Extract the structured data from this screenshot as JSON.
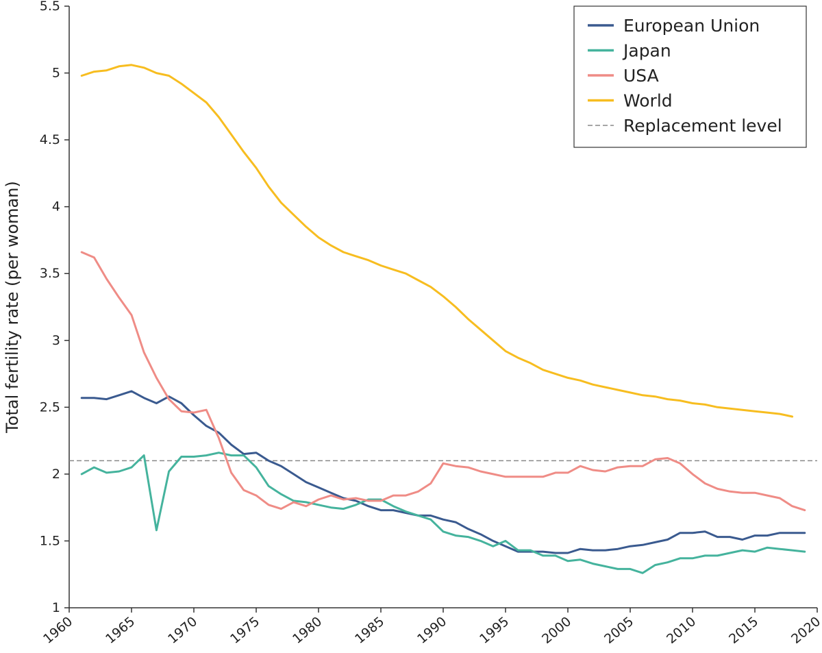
{
  "chart_data": {
    "type": "line",
    "title": "",
    "xlabel": "",
    "ylabel": "Total fertility rate (per woman)",
    "xlim": [
      1960,
      2020
    ],
    "ylim": [
      1,
      5.5
    ],
    "xticks": [
      "1960",
      "1965",
      "1970",
      "1975",
      "1980",
      "1985",
      "1990",
      "1995",
      "2000",
      "2005",
      "2010",
      "2015",
      "2020"
    ],
    "yticks": [
      "1",
      "1.5",
      "2",
      "2.5",
      "3",
      "3.5",
      "4",
      "4.5",
      "5",
      "5.5"
    ],
    "x": [
      1961,
      1962,
      1963,
      1964,
      1965,
      1966,
      1967,
      1968,
      1969,
      1970,
      1971,
      1972,
      1973,
      1974,
      1975,
      1976,
      1977,
      1978,
      1979,
      1980,
      1981,
      1982,
      1983,
      1984,
      1985,
      1986,
      1987,
      1988,
      1989,
      1990,
      1991,
      1992,
      1993,
      1994,
      1995,
      1996,
      1997,
      1998,
      1999,
      2000,
      2001,
      2002,
      2003,
      2004,
      2005,
      2006,
      2007,
      2008,
      2009,
      2010,
      2011,
      2012,
      2013,
      2014,
      2015,
      2016,
      2017,
      2018,
      2019
    ],
    "series": [
      {
        "name": "European Union",
        "color": "#3a5a8f",
        "values": [
          2.57,
          2.57,
          2.56,
          2.59,
          2.62,
          2.57,
          2.53,
          2.58,
          2.53,
          2.44,
          2.36,
          2.31,
          2.22,
          2.15,
          2.16,
          2.1,
          2.06,
          2.0,
          1.94,
          1.9,
          1.86,
          1.82,
          1.8,
          1.76,
          1.73,
          1.73,
          1.71,
          1.69,
          1.69,
          1.66,
          1.64,
          1.59,
          1.55,
          1.5,
          1.46,
          1.42,
          1.42,
          1.42,
          1.41,
          1.41,
          1.44,
          1.43,
          1.43,
          1.44,
          1.46,
          1.47,
          1.49,
          1.51,
          1.56,
          1.56,
          1.57,
          1.53,
          1.53,
          1.51,
          1.54,
          1.54,
          1.56,
          1.56,
          1.56
        ]
      },
      {
        "name": "Japan",
        "color": "#45b39d",
        "values": [
          2.0,
          2.05,
          2.01,
          2.02,
          2.05,
          2.14,
          1.58,
          2.02,
          2.13,
          2.13,
          2.14,
          2.16,
          2.14,
          2.14,
          2.05,
          1.91,
          1.85,
          1.8,
          1.79,
          1.77,
          1.75,
          1.74,
          1.77,
          1.81,
          1.81,
          1.76,
          1.72,
          1.69,
          1.66,
          1.57,
          1.54,
          1.53,
          1.5,
          1.46,
          1.5,
          1.43,
          1.43,
          1.39,
          1.39,
          1.35,
          1.36,
          1.33,
          1.31,
          1.29,
          1.29,
          1.26,
          1.32,
          1.34,
          1.37,
          1.37,
          1.39,
          1.39,
          1.41,
          1.43,
          1.42,
          1.45,
          1.44,
          1.43,
          1.42
        ]
      },
      {
        "name": "USA",
        "color": "#ef8c86",
        "values": [
          3.66,
          3.62,
          3.46,
          3.32,
          3.19,
          2.91,
          2.72,
          2.56,
          2.47,
          2.46,
          2.48,
          2.27,
          2.01,
          1.88,
          1.84,
          1.77,
          1.74,
          1.79,
          1.76,
          1.81,
          1.84,
          1.81,
          1.82,
          1.8,
          1.8,
          1.84,
          1.84,
          1.87,
          1.93,
          2.08,
          2.06,
          2.05,
          2.02,
          2.0,
          1.98,
          1.98,
          1.98,
          1.98,
          2.01,
          2.01,
          2.06,
          2.03,
          2.02,
          2.05,
          2.06,
          2.06,
          2.11,
          2.12,
          2.08,
          2.0,
          1.93,
          1.89,
          1.87,
          1.86,
          1.86,
          1.84,
          1.82,
          1.76,
          1.73
        ]
      },
      {
        "name": "World",
        "color": "#f7bd20",
        "values": [
          4.98,
          5.01,
          5.02,
          5.05,
          5.06,
          5.04,
          5.0,
          4.98,
          4.92,
          4.85,
          4.78,
          4.67,
          4.54,
          4.41,
          4.29,
          4.15,
          4.03,
          3.94,
          3.85,
          3.77,
          3.71,
          3.66,
          3.63,
          3.6,
          3.56,
          3.53,
          3.5,
          3.45,
          3.4,
          3.33,
          3.25,
          3.16,
          3.08,
          3.0,
          2.92,
          2.87,
          2.83,
          2.78,
          2.75,
          2.72,
          2.7,
          2.67,
          2.65,
          2.63,
          2.61,
          2.59,
          2.58,
          2.56,
          2.55,
          2.53,
          2.52,
          2.5,
          2.49,
          2.48,
          2.47,
          2.46,
          2.45,
          2.43,
          null
        ]
      }
    ],
    "reference_line": {
      "name": "Replacement level",
      "value": 2.1,
      "color": "#888888",
      "style": "dashed"
    },
    "legend": {
      "placement": "top-right",
      "entries": [
        "European Union",
        "Japan",
        "USA",
        "World",
        "Replacement level"
      ]
    },
    "grid": false
  }
}
